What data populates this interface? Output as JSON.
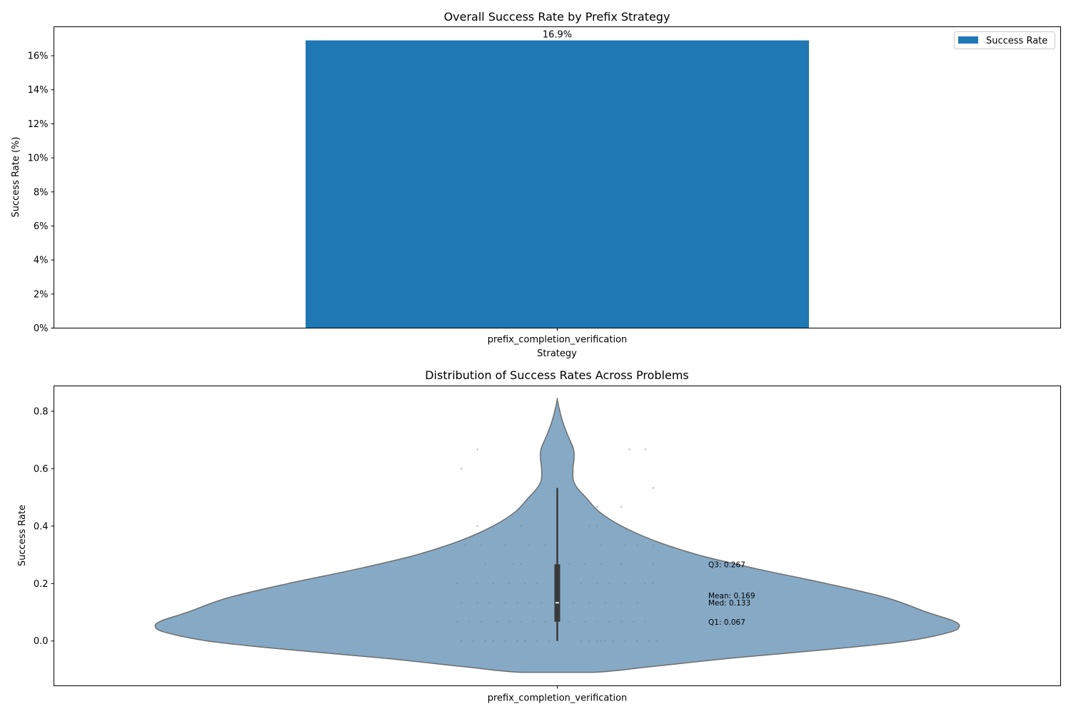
{
  "chart_data": [
    {
      "type": "bar",
      "title": "Overall Success Rate by Prefix Strategy",
      "xlabel": "Strategy",
      "ylabel": "Success Rate (%)",
      "categories": [
        "prefix_completion_verification"
      ],
      "series": [
        {
          "name": "Success Rate",
          "values": [
            16.9
          ]
        }
      ],
      "value_labels": [
        "16.9%"
      ],
      "yticks": [
        "0%",
        "2%",
        "4%",
        "6%",
        "8%",
        "10%",
        "12%",
        "14%",
        "16%"
      ],
      "ylim": [
        0,
        17.7
      ],
      "legend": {
        "label": "Success Rate",
        "position": "top-right"
      },
      "grid": false,
      "colors": {
        "bar": "#1f77b4"
      }
    },
    {
      "type": "violin",
      "title": "Distribution of Success Rates Across Problems",
      "xlabel": "",
      "ylabel": "Success Rate",
      "categories": [
        "prefix_completion_verification"
      ],
      "yticks": [
        "0.0",
        "0.2",
        "0.4",
        "0.6",
        "0.8"
      ],
      "ylim": [
        -0.156,
        0.888
      ],
      "stats": {
        "q1": 0.067,
        "median": 0.133,
        "mean": 0.169,
        "q3": 0.267,
        "whisker_low": 0.0,
        "whisker_high": 0.533,
        "min": -0.109,
        "max": 0.842
      },
      "annotations": [
        "Q3: 0.267",
        "Mean: 0.169",
        "Med: 0.133",
        "Q1: 0.067"
      ],
      "violin_width_profile": [
        [
          -0.109,
          0.09
        ],
        [
          -0.09,
          0.23
        ],
        [
          -0.06,
          0.43
        ],
        [
          -0.03,
          0.67
        ],
        [
          0.0,
          0.87
        ],
        [
          0.03,
          0.975
        ],
        [
          0.05,
          1.0
        ],
        [
          0.07,
          0.985
        ],
        [
          0.1,
          0.92
        ],
        [
          0.15,
          0.82
        ],
        [
          0.2,
          0.67
        ],
        [
          0.25,
          0.5
        ],
        [
          0.3,
          0.35
        ],
        [
          0.35,
          0.24
        ],
        [
          0.4,
          0.16
        ],
        [
          0.45,
          0.104
        ],
        [
          0.5,
          0.071
        ],
        [
          0.53,
          0.051
        ],
        [
          0.56,
          0.04
        ],
        [
          0.6,
          0.039
        ],
        [
          0.64,
          0.042
        ],
        [
          0.67,
          0.04
        ],
        [
          0.72,
          0.025
        ],
        [
          0.77,
          0.012
        ],
        [
          0.82,
          0.003
        ],
        [
          0.842,
          0.0
        ]
      ],
      "points": [
        [
          -0.24,
          0.0
        ],
        [
          -0.21,
          0.0
        ],
        [
          -0.18,
          0.0
        ],
        [
          -0.16,
          0.0
        ],
        [
          -0.13,
          0.0
        ],
        [
          -0.1,
          0.0
        ],
        [
          -0.08,
          0.0
        ],
        [
          -0.05,
          0.0
        ],
        [
          -0.02,
          0.0
        ],
        [
          0.06,
          0.0
        ],
        [
          0.08,
          0.0
        ],
        [
          0.1,
          0.0
        ],
        [
          0.11,
          0.0
        ],
        [
          0.12,
          0.0
        ],
        [
          0.14,
          0.0
        ],
        [
          0.17,
          0.0
        ],
        [
          0.2,
          0.0
        ],
        [
          0.23,
          0.0
        ],
        [
          0.25,
          0.0
        ],
        [
          -0.25,
          0.067
        ],
        [
          -0.22,
          0.067
        ],
        [
          -0.19,
          0.067
        ],
        [
          -0.15,
          0.067
        ],
        [
          -0.12,
          0.067
        ],
        [
          -0.09,
          0.067
        ],
        [
          -0.06,
          0.067
        ],
        [
          -0.03,
          0.067
        ],
        [
          0.03,
          0.067
        ],
        [
          0.07,
          0.067
        ],
        [
          0.1,
          0.067
        ],
        [
          0.13,
          0.067
        ],
        [
          0.16,
          0.067
        ],
        [
          0.19,
          0.067
        ],
        [
          0.22,
          0.067
        ],
        [
          -0.24,
          0.133
        ],
        [
          -0.2,
          0.133
        ],
        [
          -0.17,
          0.133
        ],
        [
          -0.13,
          0.133
        ],
        [
          -0.1,
          0.133
        ],
        [
          -0.07,
          0.133
        ],
        [
          -0.04,
          0.133
        ],
        [
          0.04,
          0.133
        ],
        [
          0.08,
          0.133
        ],
        [
          0.12,
          0.133
        ],
        [
          0.16,
          0.133
        ],
        [
          0.2,
          0.133
        ],
        [
          -0.25,
          0.2
        ],
        [
          -0.2,
          0.2
        ],
        [
          -0.16,
          0.2
        ],
        [
          -0.12,
          0.2
        ],
        [
          -0.08,
          0.2
        ],
        [
          -0.05,
          0.2
        ],
        [
          0.06,
          0.2
        ],
        [
          0.1,
          0.2
        ],
        [
          0.13,
          0.2
        ],
        [
          0.17,
          0.2
        ],
        [
          0.22,
          0.2
        ],
        [
          0.24,
          0.2
        ],
        [
          -0.18,
          0.267
        ],
        [
          -0.11,
          0.267
        ],
        [
          -0.09,
          0.267
        ],
        [
          0.03,
          0.267
        ],
        [
          0.07,
          0.267
        ],
        [
          0.11,
          0.267
        ],
        [
          0.16,
          0.267
        ],
        [
          0.24,
          0.267
        ],
        [
          -0.23,
          0.333
        ],
        [
          -0.19,
          0.333
        ],
        [
          -0.13,
          0.333
        ],
        [
          -0.07,
          0.333
        ],
        [
          -0.03,
          0.333
        ],
        [
          0.11,
          0.333
        ],
        [
          0.17,
          0.333
        ],
        [
          0.2,
          0.333
        ],
        [
          0.24,
          0.333
        ],
        [
          -0.2,
          0.4
        ],
        [
          -0.09,
          0.4
        ],
        [
          0.08,
          0.4
        ],
        [
          0.1,
          0.4
        ],
        [
          0.16,
          0.4
        ],
        [
          0.1,
          0.467
        ],
        [
          0.16,
          0.467
        ],
        [
          -0.05,
          0.533
        ],
        [
          0.24,
          0.533
        ],
        [
          -0.24,
          0.6
        ],
        [
          -0.2,
          0.667
        ],
        [
          0.18,
          0.667
        ],
        [
          0.22,
          0.667
        ]
      ]
    }
  ]
}
